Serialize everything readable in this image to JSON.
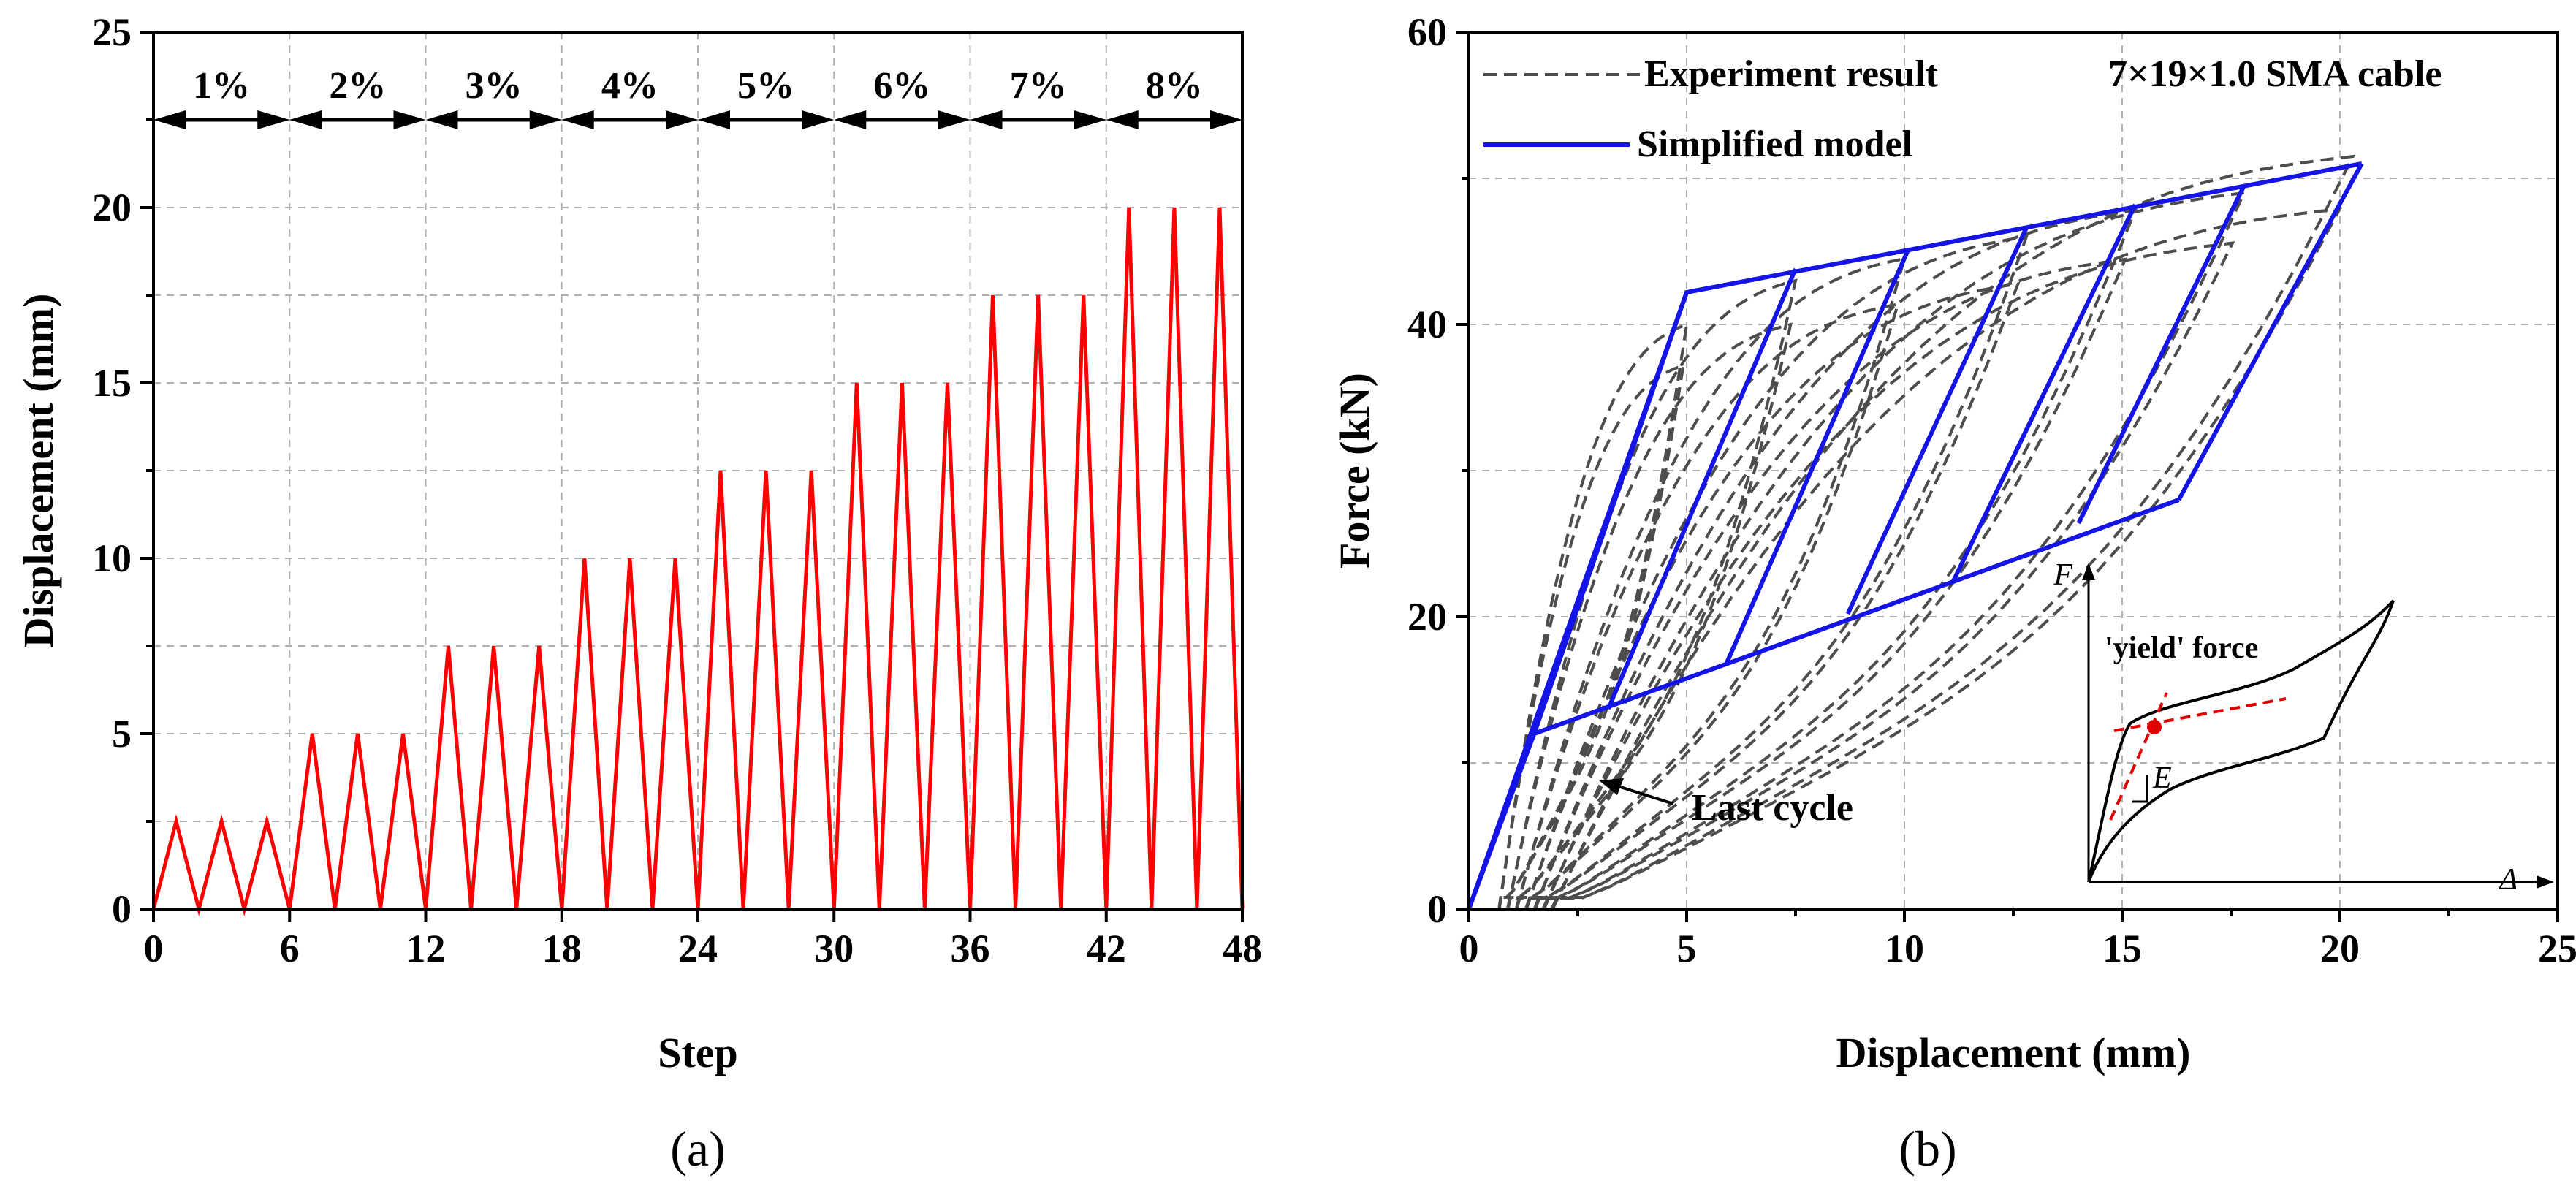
{
  "chart_data": [
    {
      "id": "a",
      "type": "line",
      "panel_label": "(a)",
      "xlabel": "Step",
      "ylabel": "Displacement (mm)",
      "xlim": [
        0,
        48
      ],
      "ylim": [
        0,
        25
      ],
      "xticks": [
        0,
        6,
        12,
        18,
        24,
        30,
        36,
        42,
        48
      ],
      "yticks": [
        0,
        5,
        10,
        15,
        20,
        25
      ],
      "grid": true,
      "series": [
        {
          "name": "Loading protocol",
          "color": "#ff0000",
          "style": "solid",
          "x": [
            0,
            1,
            2,
            3,
            4,
            5,
            6,
            7,
            8,
            9,
            10,
            11,
            12,
            13,
            14,
            15,
            16,
            17,
            18,
            19,
            20,
            21,
            22,
            23,
            24,
            25,
            26,
            27,
            28,
            29,
            30,
            31,
            32,
            33,
            34,
            35,
            36,
            37,
            38,
            39,
            40,
            41,
            42,
            43,
            44,
            45,
            46,
            47,
            48
          ],
          "y": [
            0,
            2.5,
            0,
            2.5,
            0,
            2.5,
            0,
            5,
            0,
            5,
            0,
            5,
            0,
            7.5,
            0,
            7.5,
            0,
            7.5,
            0,
            10,
            0,
            10,
            0,
            10,
            0,
            12.5,
            0,
            12.5,
            0,
            12.5,
            0,
            15,
            0,
            15,
            0,
            15,
            0,
            17.5,
            0,
            17.5,
            0,
            17.5,
            0,
            20,
            0,
            20,
            0,
            20,
            0
          ]
        }
      ],
      "level_marks": {
        "y": 22.5,
        "boundaries": [
          0,
          6,
          12,
          18,
          24,
          30,
          36,
          42,
          48
        ],
        "labels": [
          "1%",
          "2%",
          "3%",
          "4%",
          "5%",
          "6%",
          "7%",
          "8%"
        ]
      }
    },
    {
      "id": "b",
      "type": "line",
      "panel_label": "(b)",
      "xlabel": "Displacement (mm)",
      "ylabel": "Force (kN)",
      "xlim": [
        0,
        25
      ],
      "ylim": [
        0,
        60
      ],
      "xticks": [
        0,
        5,
        10,
        15,
        20,
        25
      ],
      "yticks": [
        0,
        20,
        40,
        60
      ],
      "grid": true,
      "legend": [
        {
          "label": "Experiment result",
          "color": "#4d4d4d",
          "style": "dashed"
        },
        {
          "label": "Simplified model",
          "color": "#1414e6",
          "style": "solid"
        }
      ],
      "specimen_label": "7×19×1.0 SMA cable",
      "annotation": "Last cycle",
      "model_envelope": {
        "upper": [
          [
            0,
            0
          ],
          [
            5,
            42.2
          ],
          [
            20.5,
            51
          ]
        ],
        "lower": [
          [
            1.5,
            12
          ],
          [
            16.3,
            28
          ]
        ]
      },
      "model_unloading": [
        [
          [
            20.5,
            51
          ],
          [
            16.3,
            28
          ]
        ],
        [
          [
            17.8,
            49.5
          ],
          [
            14,
            26.4
          ]
        ],
        [
          [
            15.3,
            48.2
          ],
          [
            11.1,
            22.3
          ]
        ],
        [
          [
            12.8,
            46.6
          ],
          [
            8.7,
            20.2
          ]
        ],
        [
          [
            10.1,
            45.2
          ],
          [
            5.9,
            16.7
          ]
        ],
        [
          [
            7.5,
            43.8
          ],
          [
            3.2,
            13.7
          ]
        ],
        [
          [
            5,
            42.2
          ],
          [
            1.5,
            12
          ]
        ]
      ],
      "experiment_peaks": [
        [
          5,
          40
        ],
        [
          7.5,
          43
        ],
        [
          10,
          44.5
        ],
        [
          12.8,
          46
        ],
        [
          15.3,
          47.8
        ],
        [
          17.8,
          49
        ],
        [
          20.3,
          51.5
        ]
      ],
      "inset": {
        "y_axis": "F",
        "x_axis": "Δ",
        "yield_label": "'yield' force",
        "stiffness_label": "E"
      }
    }
  ]
}
